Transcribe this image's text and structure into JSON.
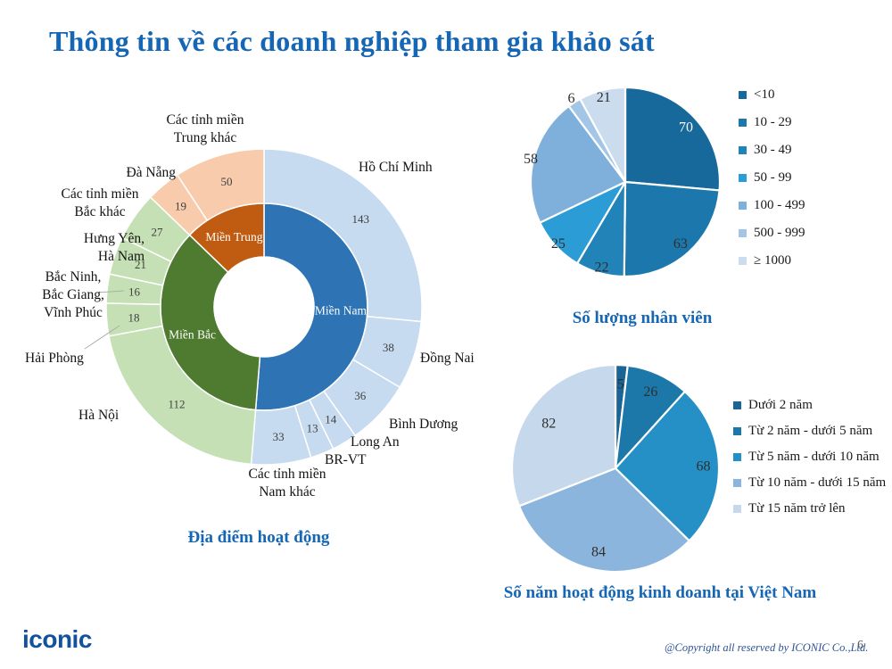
{
  "slide": {
    "title": "Thông tin về các doanh nghiệp tham gia khảo sát",
    "logo_text": "iconic",
    "copyright": "@Copyright all reserved by ICONIC Co.,Ltd.",
    "page_number": "6"
  },
  "colors": {
    "title_blue": "#1566b4",
    "logo_blue": "#11519e",
    "value_gray": "#404040",
    "leader_line_gray": "#adadad"
  },
  "chart_data": [
    {
      "id": "locations",
      "type": "donut",
      "title": "Địa điểm hoạt động",
      "inner_ring": [
        {
          "label": "Miền Nam",
          "value": 277,
          "color": "#2e74b5",
          "text_color": "#ffffff"
        },
        {
          "label": "Miền Bắc",
          "value": 194,
          "color": "#4e7b2f",
          "text_color": "#ffffff"
        },
        {
          "label": "Miền Trung",
          "value": 69,
          "color": "#c05c12",
          "text_color": "#ffffff"
        }
      ],
      "outer_ring": [
        {
          "label": "Hồ Chí Minh",
          "value": 143,
          "color": "#c6daf0"
        },
        {
          "label": "Đồng Nai",
          "value": 38,
          "color": "#c6daf0"
        },
        {
          "label": "Bình Dương",
          "value": 36,
          "color": "#c6daf0"
        },
        {
          "label": "Long An",
          "value": 14,
          "color": "#c6daf0"
        },
        {
          "label": "BR-VT",
          "value": 13,
          "color": "#c6daf0"
        },
        {
          "label": "Các tỉnh miền Nam khác",
          "value": 33,
          "color": "#c6daf0"
        },
        {
          "label": "Hà Nội",
          "value": 112,
          "color": "#c5e0b4"
        },
        {
          "label": "Hải Phòng",
          "value": 18,
          "color": "#c5e0b4"
        },
        {
          "label": "Bắc Ninh, Bắc Giang, Vĩnh Phúc",
          "value": 16,
          "color": "#c5e0b4"
        },
        {
          "label": "Hưng Yên, Hà Nam",
          "value": 21,
          "color": "#c5e0b4"
        },
        {
          "label": "Các tỉnh miền Bắc khác",
          "value": 27,
          "color": "#c5e0b4"
        },
        {
          "label": "Đà Nẵng",
          "value": 19,
          "color": "#f7cbab"
        },
        {
          "label": "Các tỉnh miền Trung khác",
          "value": 50,
          "color": "#f7cbab"
        }
      ],
      "callout_labels": {
        "trung_khac": "Các tỉnh miền\nTrung khác",
        "da_nang": "Đà Nẵng",
        "bac_khac": "Các tỉnh miền\nBắc khác",
        "hung_yen": "Hưng Yên,\nHà Nam",
        "bac_ninh": "Bắc Ninh,\nBắc Giang,\nVĩnh Phúc",
        "hai_phong": "Hải Phòng",
        "ha_noi": "Hà Nội",
        "nam_khac": "Các tỉnh miền\nNam khác",
        "brvt": "BR-VT",
        "long_an": "Long An",
        "binh_duong": "Bình Dương",
        "dong_nai": "Đồng Nai",
        "hcm": "Hồ Chí Minh"
      }
    },
    {
      "id": "employees",
      "type": "pie",
      "title": "Số lượng nhân viên",
      "legend_position": "right",
      "slices": [
        {
          "label": "<10",
          "value": 70,
          "color": "#17699b",
          "label_color": "#ffffff",
          "label_r": 0.87
        },
        {
          "label": "10 - 29",
          "value": 63,
          "color": "#1c78ac",
          "label_color": "#2f2f2f",
          "label_r": 0.87
        },
        {
          "label": "30 - 49",
          "value": 22,
          "color": "#2183b8",
          "label_color": "#2f2f2f",
          "label_r": 0.93
        },
        {
          "label": "50 - 99",
          "value": 25,
          "color": "#2b9cd5",
          "label_color": "#2f2f2f",
          "label_r": 0.96
        },
        {
          "label": "100 - 499",
          "value": 58,
          "color": "#7fb0dc",
          "label_color": "#2f2f2f",
          "label_r": 1.03
        },
        {
          "label": "500 - 999",
          "value": 6,
          "color": "#a3c6e6",
          "label_color": "#2f2f2f",
          "label_r": 1.06
        },
        {
          "label": "≥ 1000",
          "value": 21,
          "color": "#cadcee",
          "label_color": "#2f2f2f",
          "label_r": 0.93
        }
      ]
    },
    {
      "id": "years",
      "type": "pie",
      "title": "Số năm hoạt động kinh doanh tại Việt Nam",
      "legend_position": "right",
      "slices": [
        {
          "label": "Dưới 2 năm",
          "value": 5,
          "color": "#1b6496",
          "label_color": "#2f2f2f",
          "label_r": 0.82
        },
        {
          "label": "Từ 2 năm - dưới 5 năm",
          "value": 26,
          "color": "#1d78aa",
          "label_color": "#2f2f2f",
          "label_r": 0.82
        },
        {
          "label": "Từ 5 năm - dưới 10 năm",
          "value": 68,
          "color": "#2490c6",
          "label_color": "#2f2f2f",
          "label_r": 0.85
        },
        {
          "label": "Từ 10 năm - dưới 15 năm",
          "value": 84,
          "color": "#8cb5dd",
          "label_color": "#2f2f2f",
          "label_r": 0.82
        },
        {
          "label": "Từ 15 năm trở lên",
          "value": 82,
          "color": "#c5d8ec",
          "label_color": "#2f2f2f",
          "label_r": 0.78
        }
      ]
    }
  ]
}
